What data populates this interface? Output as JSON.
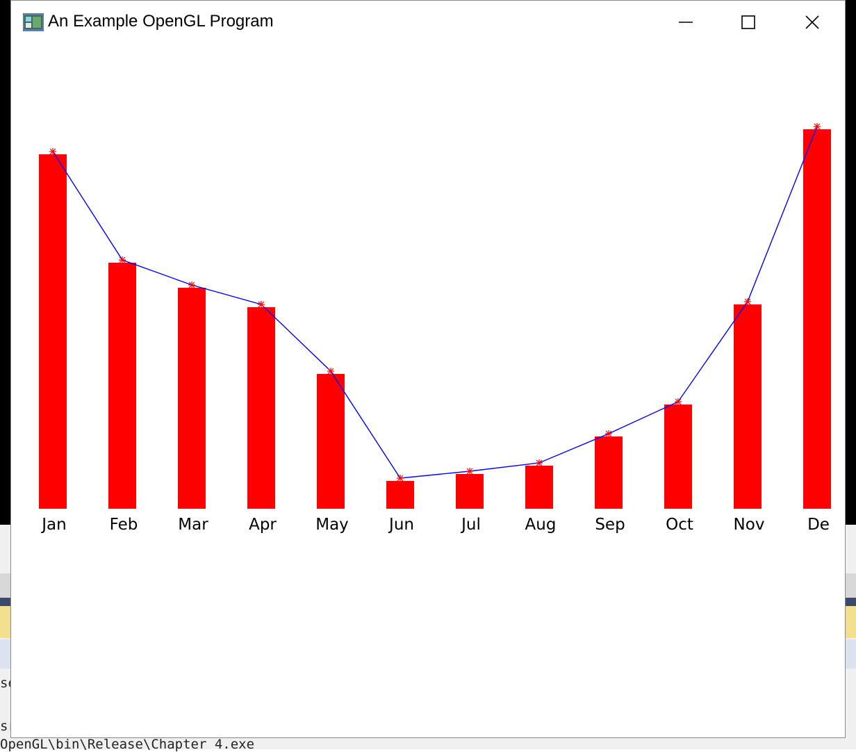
{
  "window": {
    "title": "An Example OpenGL Program"
  },
  "title_buttons": {
    "minimize_icon": "minimize-icon",
    "maximize_icon": "maximize-icon",
    "close_icon": "close-icon"
  },
  "console": {
    "path_text": "OpenGL\\bin\\Release\\Chapter 4.exe",
    "frag_1": "se",
    "frag_2": "sr"
  },
  "colors": {
    "bars": "#ff0000",
    "line": "#0000ff",
    "markers": "#ff0000",
    "background": "#ffffff"
  },
  "chart_data": {
    "type": "bar",
    "categories": [
      "Jan",
      "Feb",
      "Mar",
      "Apr",
      "May",
      "Jun",
      "Jul",
      "Aug",
      "Sep",
      "Oct",
      "Nov",
      "De"
    ],
    "values": [
      510,
      354,
      318,
      290,
      194,
      40,
      50,
      62,
      104,
      150,
      294,
      546
    ],
    "overlay": "line",
    "grid": false,
    "legend": false
  }
}
